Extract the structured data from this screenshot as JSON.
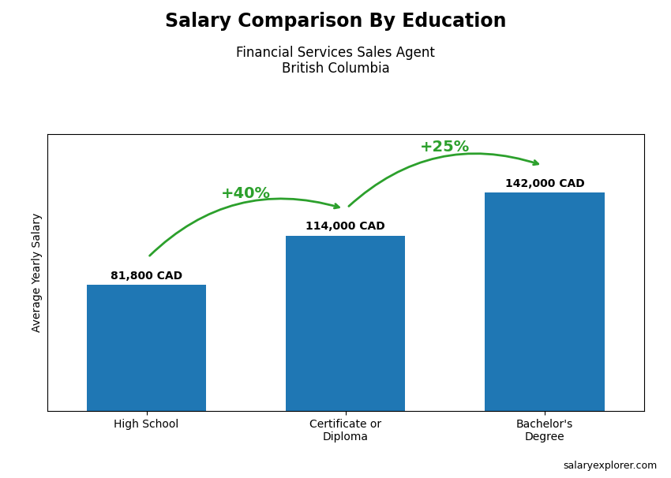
{
  "chart_data": {
    "type": "bar",
    "title": "Salary Comparison By Education",
    "subtitle": "Financial Services Sales Agent\nBritish Columbia",
    "y_label": "Average Yearly Salary",
    "watermark": "salaryexplorer.com",
    "categories": [
      "High School",
      "Certificate or\nDiploma",
      "Bachelor's\nDegree"
    ],
    "values": [
      81800,
      114000,
      142000
    ],
    "value_labels": [
      "81,800 CAD",
      "114,000 CAD",
      "142,000 CAD"
    ],
    "data_labels": true,
    "annotations": [
      "+40%",
      "+25%"
    ],
    "ylim": [
      0,
      180000
    ],
    "tick_labels": "x",
    "grid": false
  }
}
